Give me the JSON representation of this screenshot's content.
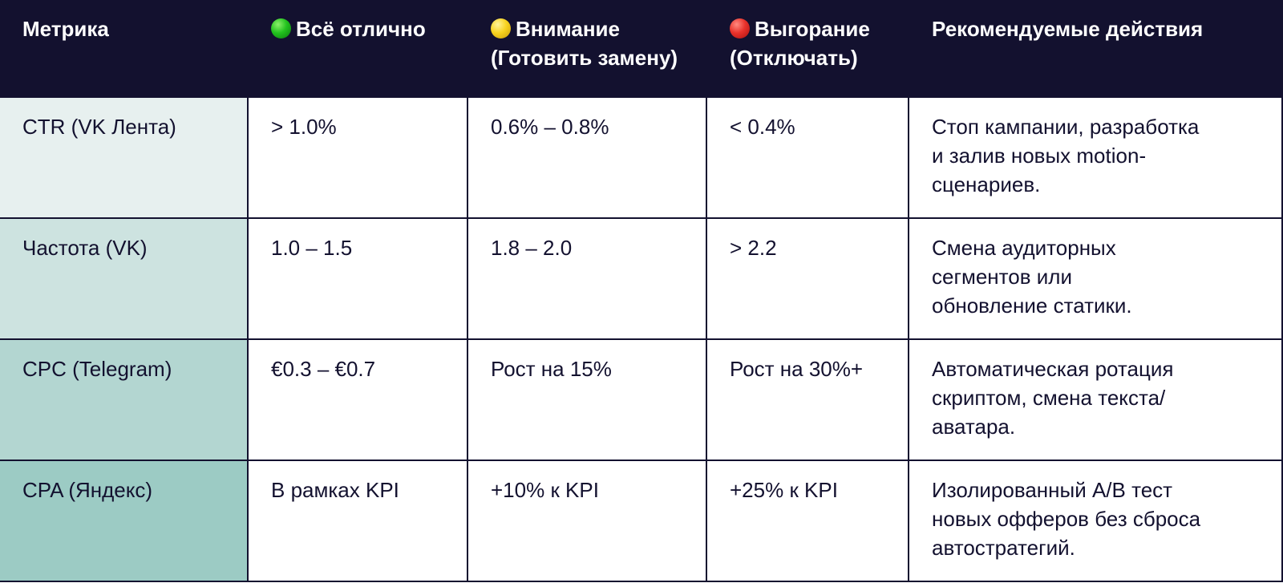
{
  "header": {
    "metric": "Метрика",
    "ok": "Всё отлично",
    "attention_line1": "Внимание",
    "attention_line2": "(Готовить замену)",
    "burnout_line1": "Выгорание",
    "burnout_line2": "(Отключать)",
    "actions": "Рекомендуемые действия"
  },
  "status_colors": {
    "ok": "#22c21e",
    "attention": "#f8d320",
    "burnout": "#e8322b"
  },
  "rows": [
    {
      "metric": "CTR (VK Лента)",
      "ok": "> 1.0%",
      "attention": "0.6% – 0.8%",
      "burnout": "< 0.4%",
      "action_lines": [
        "Стоп кампании, разработка",
        "и залив новых motion-",
        "сценариев."
      ]
    },
    {
      "metric": "Частота (VK)",
      "ok": "1.0 – 1.5",
      "attention": "1.8 – 2.0",
      "burnout": "> 2.2",
      "action_lines": [
        "Смена аудиторных",
        "сегментов или",
        "обновление статики."
      ]
    },
    {
      "metric": "CPC (Telegram)",
      "ok": "€0.3 – €0.7",
      "attention": "Рост на 15%",
      "burnout": "Рост на 30%+",
      "action_lines": [
        "Автоматическая ротация",
        "скриптом, смена текста/",
        "аватара."
      ]
    },
    {
      "metric": "CPA (Яндекс)",
      "ok": "В рамках KPI",
      "attention": "+10% к KPI",
      "burnout": "+25% к KPI",
      "action_lines": [
        "Изолированный A/B тест",
        "новых офферов без сброса",
        "автостратегий."
      ]
    }
  ]
}
